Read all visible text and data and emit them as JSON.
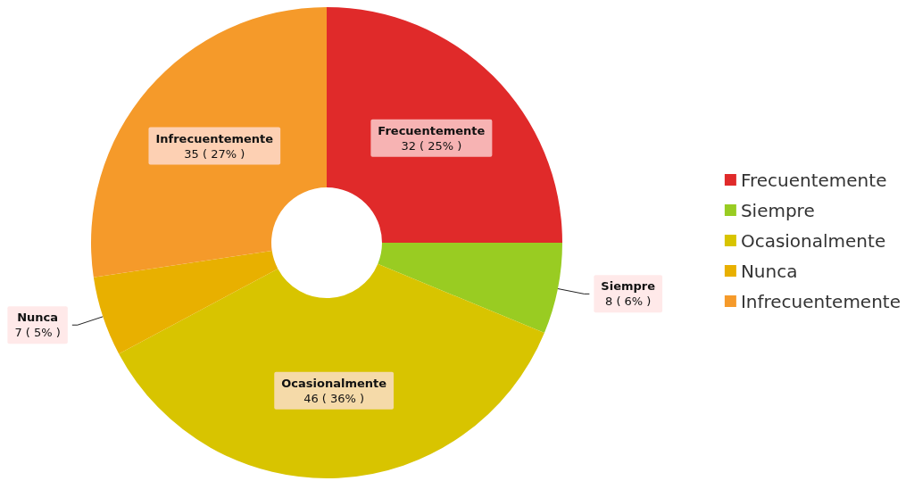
{
  "chart_data": {
    "type": "donut",
    "categories": [
      "Frecuentemente",
      "Siempre",
      "Ocasionalmente",
      "Nunca",
      "Infrecuentemente"
    ],
    "values": [
      32,
      8,
      46,
      7,
      35
    ],
    "colors": [
      "#e02a2a",
      "#99cc22",
      "#d8c400",
      "#e8b000",
      "#f59a2a"
    ],
    "value_labels": [
      "32 ( 25% )",
      "8 ( 6% )",
      "46 ( 36% )",
      "7 ( 5% )",
      "35 ( 27% )"
    ],
    "legend": "right"
  }
}
